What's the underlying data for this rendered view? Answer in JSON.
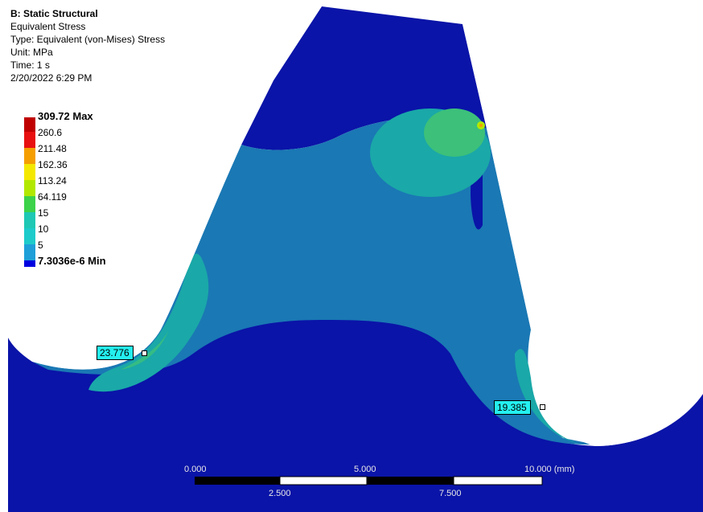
{
  "header": {
    "system": "B: Static Structural",
    "result": "Equivalent Stress",
    "type": "Type: Equivalent (von-Mises) Stress",
    "unit": "Unit: MPa",
    "time": "Time: 1 s",
    "date": "2/20/2022 6:29 PM"
  },
  "legend": {
    "max_label": "309.72 Max",
    "min_label": "7.3036e-6 Min",
    "levels": [
      {
        "label": "260.6",
        "color": "#e81010"
      },
      {
        "label": "211.48",
        "color": "#f49e00"
      },
      {
        "label": "162.36",
        "color": "#f4e800"
      },
      {
        "label": "113.24",
        "color": "#b2e800"
      },
      {
        "label": "64.119",
        "color": "#3cd24a"
      },
      {
        "label": "15",
        "color": "#1ec8b4"
      },
      {
        "label": "10",
        "color": "#1ecbcb"
      },
      {
        "label": "5",
        "color": "#1e9fd8"
      }
    ],
    "band_colors": [
      "#c00000",
      "#e81010",
      "#f49e00",
      "#f4e800",
      "#b2e800",
      "#3cd24a",
      "#1ec8b4",
      "#1ecbcb",
      "#1e9fd8",
      "#0000e0"
    ]
  },
  "probes": [
    {
      "value": "23.776"
    },
    {
      "value": "19.385"
    }
  ],
  "scale_bar": {
    "top_labels": [
      "0.000",
      "5.000",
      "10.000 (mm)"
    ],
    "bottom_labels": [
      "2.500",
      "7.500"
    ]
  },
  "colors": {
    "deep_blue": "#0a14a8",
    "light_blue": "#1a78b4",
    "teal": "#1aa8a8",
    "green": "#3cc07a"
  }
}
